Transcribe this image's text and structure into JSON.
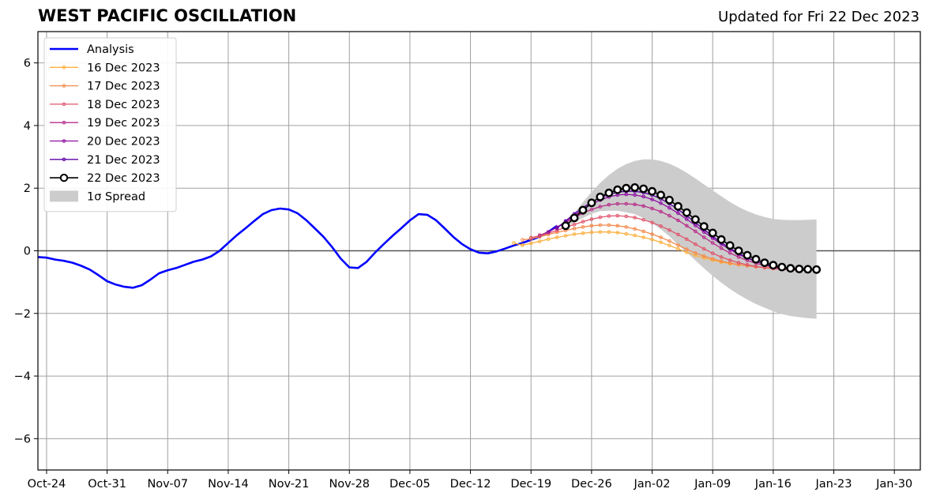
{
  "chart_data": {
    "type": "line",
    "title": "WEST PACIFIC OSCILLATION",
    "subtitle": "Updated for Fri 22 Dec 2023",
    "xlim": [
      "2023-10-23",
      "2024-02-02"
    ],
    "ylim": [
      -7,
      7
    ],
    "x_ticks": [
      "2023-10-24",
      "2023-10-31",
      "2023-11-07",
      "2023-11-14",
      "2023-11-21",
      "2023-11-28",
      "2023-12-05",
      "2023-12-12",
      "2023-12-19",
      "2023-12-26",
      "2024-01-02",
      "2024-01-09",
      "2024-01-16",
      "2024-01-23",
      "2024-01-30"
    ],
    "x_tick_labels": [
      "Oct-24",
      "Oct-31",
      "Nov-07",
      "Nov-14",
      "Nov-21",
      "Nov-28",
      "Dec-05",
      "Dec-12",
      "Dec-19",
      "Dec-26",
      "Jan-02",
      "Jan-09",
      "Jan-16",
      "Jan-23",
      "Jan-30"
    ],
    "y_ticks": [
      -6,
      -4,
      -2,
      0,
      2,
      4,
      6
    ],
    "y_tick_labels": [
      "−6",
      "−4",
      "−2",
      "0",
      "2",
      "4",
      "6"
    ],
    "grid": true,
    "legend_position": "top-left",
    "analysis": {
      "name": "Analysis",
      "color": "#0000ff",
      "points": [
        [
          "2023-10-23",
          -0.2
        ],
        [
          "2023-10-24",
          -0.22
        ],
        [
          "2023-10-25",
          -0.28
        ],
        [
          "2023-10-26",
          -0.32
        ],
        [
          "2023-10-27",
          -0.38
        ],
        [
          "2023-10-28",
          -0.48
        ],
        [
          "2023-10-29",
          -0.6
        ],
        [
          "2023-10-30",
          -0.78
        ],
        [
          "2023-10-31",
          -0.97
        ],
        [
          "2023-11-01",
          -1.08
        ],
        [
          "2023-11-02",
          -1.15
        ],
        [
          "2023-11-03",
          -1.18
        ],
        [
          "2023-11-04",
          -1.1
        ],
        [
          "2023-11-05",
          -0.92
        ],
        [
          "2023-11-06",
          -0.72
        ],
        [
          "2023-11-07",
          -0.62
        ],
        [
          "2023-11-08",
          -0.55
        ],
        [
          "2023-11-09",
          -0.45
        ],
        [
          "2023-11-10",
          -0.35
        ],
        [
          "2023-11-11",
          -0.28
        ],
        [
          "2023-11-12",
          -0.18
        ],
        [
          "2023-11-13",
          0.0
        ],
        [
          "2023-11-14",
          0.25
        ],
        [
          "2023-11-15",
          0.5
        ],
        [
          "2023-11-16",
          0.72
        ],
        [
          "2023-11-17",
          0.95
        ],
        [
          "2023-11-18",
          1.17
        ],
        [
          "2023-11-19",
          1.3
        ],
        [
          "2023-11-20",
          1.35
        ],
        [
          "2023-11-21",
          1.32
        ],
        [
          "2023-11-22",
          1.2
        ],
        [
          "2023-11-23",
          0.98
        ],
        [
          "2023-11-24",
          0.72
        ],
        [
          "2023-11-25",
          0.45
        ],
        [
          "2023-11-26",
          0.12
        ],
        [
          "2023-11-27",
          -0.25
        ],
        [
          "2023-11-28",
          -0.53
        ],
        [
          "2023-11-29",
          -0.55
        ],
        [
          "2023-11-30",
          -0.35
        ],
        [
          "2023-12-01",
          -0.05
        ],
        [
          "2023-12-02",
          0.22
        ],
        [
          "2023-12-03",
          0.48
        ],
        [
          "2023-12-04",
          0.72
        ],
        [
          "2023-12-05",
          0.97
        ],
        [
          "2023-12-06",
          1.17
        ],
        [
          "2023-12-07",
          1.15
        ],
        [
          "2023-12-08",
          0.98
        ],
        [
          "2023-12-09",
          0.72
        ],
        [
          "2023-12-10",
          0.45
        ],
        [
          "2023-12-11",
          0.22
        ],
        [
          "2023-12-12",
          0.05
        ],
        [
          "2023-12-13",
          -0.06
        ],
        [
          "2023-12-14",
          -0.08
        ],
        [
          "2023-12-15",
          -0.02
        ],
        [
          "2023-12-16",
          0.07
        ],
        [
          "2023-12-17",
          0.17
        ],
        [
          "2023-12-18",
          0.25
        ],
        [
          "2023-12-19",
          0.35
        ],
        [
          "2023-12-20",
          0.45
        ],
        [
          "2023-12-21",
          0.6
        ],
        [
          "2023-12-22",
          0.8
        ]
      ]
    },
    "series": [
      {
        "name": "16 Dec 2023",
        "color": "#fbb040",
        "start": "2023-12-17",
        "values": [
          0.25,
          0.18,
          0.24,
          0.3,
          0.37,
          0.43,
          0.48,
          0.53,
          0.56,
          0.59,
          0.6,
          0.6,
          0.58,
          0.54,
          0.49,
          0.43,
          0.36,
          0.27,
          0.17,
          0.06,
          -0.05,
          -0.15,
          -0.23,
          -0.3,
          -0.36,
          -0.41,
          -0.45,
          -0.48,
          -0.51,
          -0.53,
          -0.54,
          -0.55,
          -0.56,
          -0.57,
          -0.58
        ]
      },
      {
        "name": "17 Dec 2023",
        "color": "#f4894c",
        "start": "2023-12-18",
        "values": [
          0.35,
          0.38,
          0.45,
          0.52,
          0.59,
          0.65,
          0.71,
          0.76,
          0.8,
          0.82,
          0.82,
          0.8,
          0.76,
          0.7,
          0.62,
          0.53,
          0.43,
          0.31,
          0.18,
          0.05,
          -0.07,
          -0.17,
          -0.26,
          -0.33,
          -0.39,
          -0.44,
          -0.48,
          -0.51,
          -0.54,
          -0.56,
          -0.57,
          -0.58,
          -0.59,
          -0.6
        ]
      },
      {
        "name": "18 Dec 2023",
        "color": "#e0546b",
        "start": "2023-12-19",
        "values": [
          0.42,
          0.48,
          0.56,
          0.65,
          0.75,
          0.84,
          0.93,
          1.01,
          1.07,
          1.11,
          1.12,
          1.1,
          1.06,
          0.99,
          0.9,
          0.79,
          0.66,
          0.52,
          0.37,
          0.21,
          0.06,
          -0.08,
          -0.2,
          -0.3,
          -0.38,
          -0.45,
          -0.5,
          -0.54,
          -0.57,
          -0.59,
          -0.61,
          -0.62,
          -0.63
        ]
      },
      {
        "name": "19 Dec 2023",
        "color": "#b82e8a",
        "start": "2023-12-20",
        "values": [
          0.5,
          0.6,
          0.75,
          0.9,
          1.06,
          1.2,
          1.32,
          1.41,
          1.47,
          1.5,
          1.5,
          1.48,
          1.43,
          1.35,
          1.25,
          1.12,
          0.97,
          0.8,
          0.62,
          0.43,
          0.25,
          0.08,
          -0.07,
          -0.2,
          -0.31,
          -0.4,
          -0.47,
          -0.52,
          -0.56,
          -0.59,
          -0.61,
          -0.62
        ]
      },
      {
        "name": "20 Dec 2023",
        "color": "#8f0da4",
        "start": "2023-12-21",
        "values": [
          0.6,
          0.75,
          0.93,
          1.13,
          1.32,
          1.49,
          1.62,
          1.72,
          1.78,
          1.8,
          1.78,
          1.73,
          1.64,
          1.52,
          1.37,
          1.2,
          1.01,
          0.81,
          0.6,
          0.4,
          0.21,
          0.04,
          -0.11,
          -0.24,
          -0.34,
          -0.43,
          -0.5,
          -0.55,
          -0.58,
          -0.6,
          -0.61
        ]
      },
      {
        "name": "21 Dec 2023",
        "color": "#5c01a6",
        "start": "2023-12-22",
        "values": [
          0.72,
          0.95,
          1.18,
          1.38,
          1.56,
          1.7,
          1.8,
          1.87,
          1.9,
          1.9,
          1.86,
          1.78,
          1.66,
          1.5,
          1.32,
          1.12,
          0.9,
          0.68,
          0.46,
          0.26,
          0.08,
          -0.08,
          -0.22,
          -0.34,
          -0.43,
          -0.51,
          -0.56,
          -0.59,
          -0.61,
          -0.62
        ]
      },
      {
        "name": "22 Dec 2023",
        "color": "#000000",
        "start": "2023-12-23",
        "values": [
          0.8,
          1.05,
          1.3,
          1.53,
          1.72,
          1.85,
          1.95,
          2.0,
          2.02,
          1.98,
          1.9,
          1.78,
          1.62,
          1.42,
          1.22,
          1.0,
          0.78,
          0.57,
          0.36,
          0.17,
          0.0,
          -0.14,
          -0.27,
          -0.38,
          -0.46,
          -0.52,
          -0.56,
          -0.58,
          -0.59,
          -0.6
        ]
      }
    ],
    "spread": {
      "name": "1σ Spread",
      "color": "#cccccc",
      "start": "2023-12-23",
      "upper": [
        0.85,
        1.2,
        1.55,
        1.88,
        2.17,
        2.42,
        2.62,
        2.77,
        2.87,
        2.92,
        2.92,
        2.87,
        2.78,
        2.65,
        2.49,
        2.31,
        2.12,
        1.93,
        1.74,
        1.56,
        1.4,
        1.27,
        1.16,
        1.08,
        1.02,
        0.99,
        0.98,
        0.98,
        0.99,
        1.0
      ],
      "lower": [
        0.75,
        0.9,
        1.05,
        1.18,
        1.27,
        1.28,
        1.28,
        1.23,
        1.17,
        1.04,
        0.88,
        0.69,
        0.46,
        0.19,
        -0.05,
        -0.31,
        -0.56,
        -0.8,
        -1.02,
        -1.22,
        -1.4,
        -1.56,
        -1.7,
        -1.82,
        -1.93,
        -2.02,
        -2.08,
        -2.12,
        -2.15,
        -2.17
      ]
    }
  }
}
